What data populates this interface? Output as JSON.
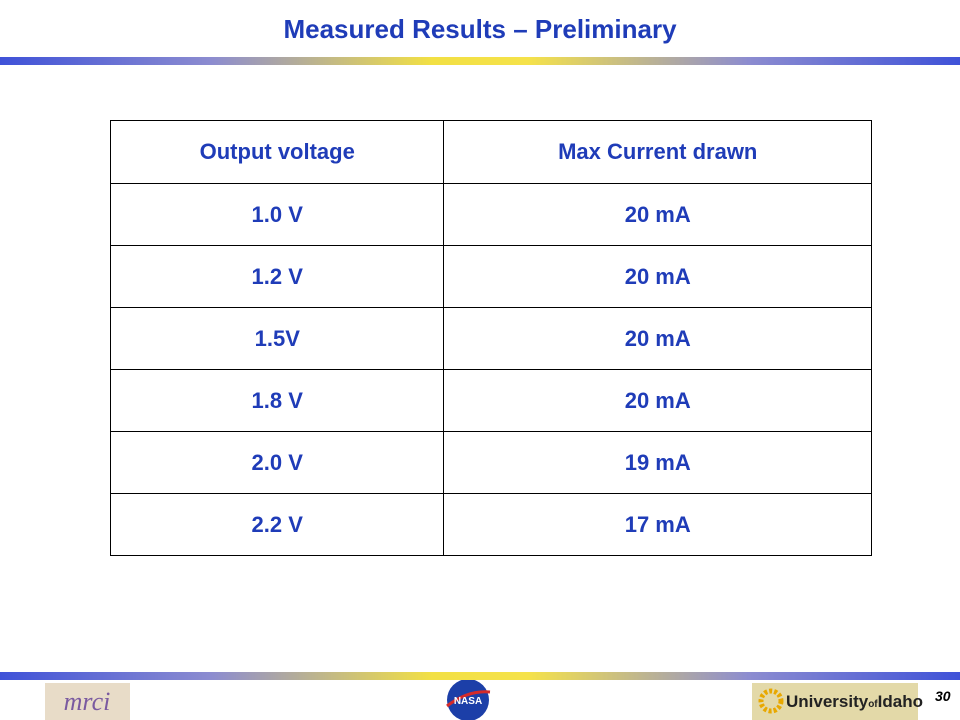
{
  "header": {
    "title": "Measured Results – Preliminary"
  },
  "table": {
    "columns": [
      "Output voltage",
      "Max Current drawn"
    ],
    "rows": [
      [
        "1.0 V",
        "20 mA"
      ],
      [
        "1.2 V",
        "20 mA"
      ],
      [
        "1.5V",
        "20 mA"
      ],
      [
        "1.8 V",
        "20 mA"
      ],
      [
        "2.0 V",
        "19 mA"
      ],
      [
        "2.2 V",
        "17 mA"
      ]
    ]
  },
  "footer": {
    "left_logo": "mrci",
    "center_logo": "NASA",
    "right_logo": [
      "University",
      "of",
      "Idaho"
    ],
    "page_number": "30"
  }
}
